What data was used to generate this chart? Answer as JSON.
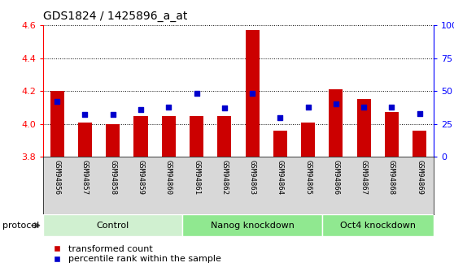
{
  "title": "GDS1824 / 1425896_a_at",
  "samples": [
    "GSM94856",
    "GSM94857",
    "GSM94858",
    "GSM94859",
    "GSM94860",
    "GSM94861",
    "GSM94862",
    "GSM94863",
    "GSM94864",
    "GSM94865",
    "GSM94866",
    "GSM94867",
    "GSM94868",
    "GSM94869"
  ],
  "transformed_counts": [
    4.2,
    4.01,
    4.0,
    4.05,
    4.05,
    4.05,
    4.05,
    4.57,
    3.96,
    4.01,
    4.21,
    4.15,
    4.07,
    3.96
  ],
  "percentile_ranks": [
    42,
    32,
    32,
    36,
    38,
    48,
    37,
    48,
    30,
    38,
    40,
    38,
    38,
    33
  ],
  "y_min": 3.8,
  "y_max": 4.6,
  "y_ticks_left": [
    3.8,
    4.0,
    4.2,
    4.4,
    4.6
  ],
  "y_ticks_right": [
    0,
    25,
    50,
    75,
    100
  ],
  "groups": [
    {
      "label": "Control",
      "start": 0,
      "end": 5,
      "color": "#d0f0d0"
    },
    {
      "label": "Nanog knockdown",
      "start": 5,
      "end": 10,
      "color": "#90e890"
    },
    {
      "label": "Oct4 knockdown",
      "start": 10,
      "end": 14,
      "color": "#90e890"
    }
  ],
  "bar_color": "#cc0000",
  "dot_color": "#0000cc",
  "plot_bg": "#ffffff",
  "xtick_bg": "#d8d8d8",
  "legend_items": [
    {
      "label": "transformed count",
      "color": "#cc0000"
    },
    {
      "label": "percentile rank within the sample",
      "color": "#0000cc"
    }
  ],
  "protocol_label": "protocol"
}
